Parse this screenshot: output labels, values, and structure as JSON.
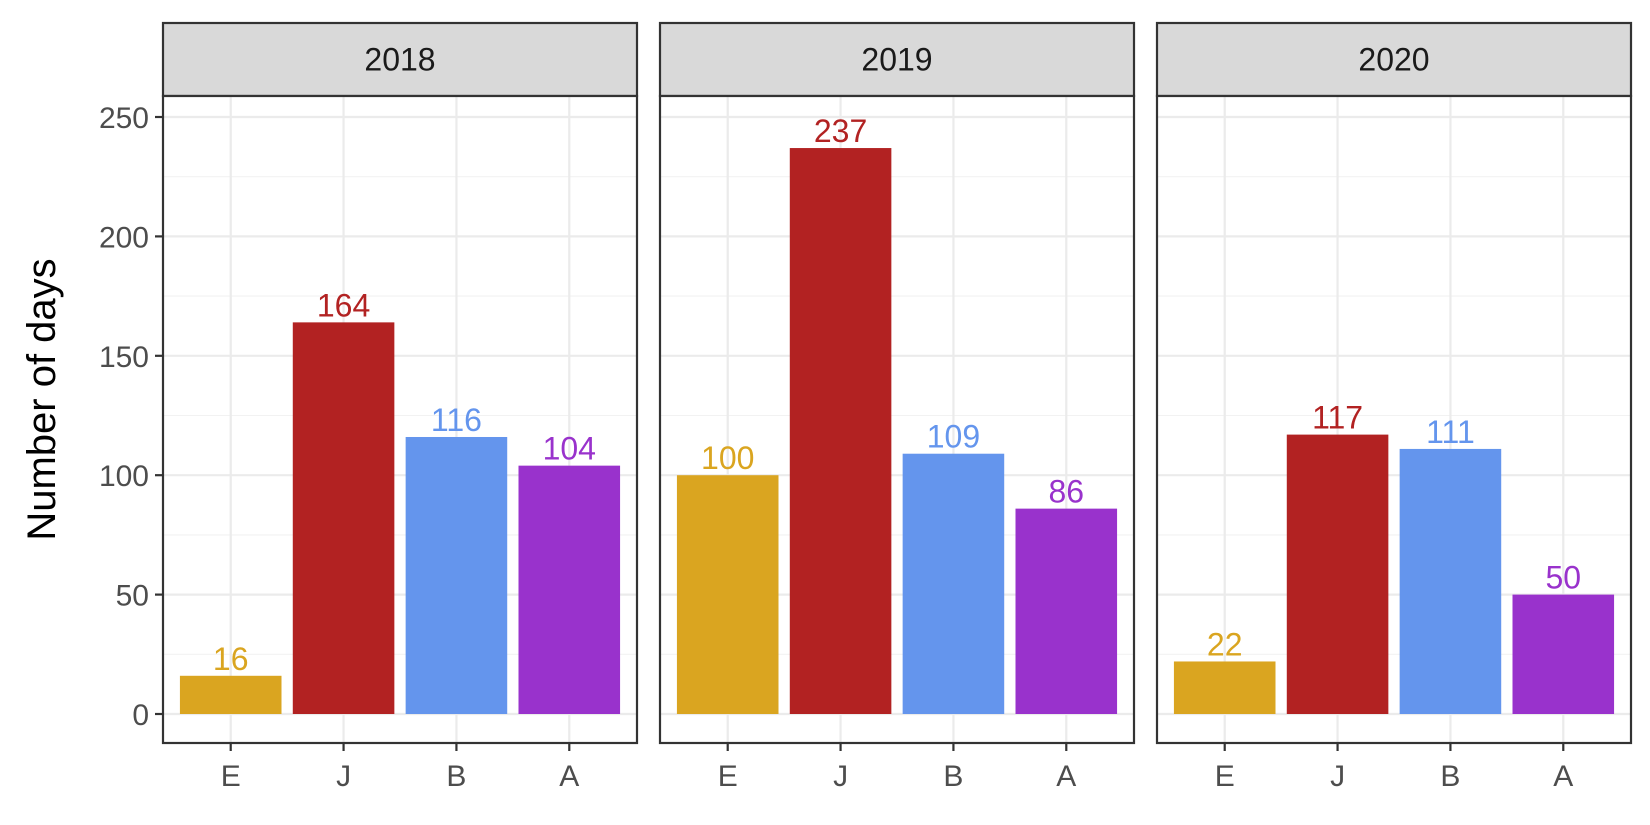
{
  "chart_data": {
    "type": "bar",
    "ylabel": "Number of days",
    "ylim": [
      0,
      250
    ],
    "yticks": [
      0,
      50,
      100,
      150,
      200,
      250
    ],
    "categories": [
      "E",
      "J",
      "B",
      "A"
    ],
    "colors": {
      "E": "#DAA520",
      "J": "#B22222",
      "B": "#6495ED",
      "A": "#9932CC"
    },
    "facets": [
      {
        "label": "2018",
        "values": [
          16,
          164,
          116,
          104
        ]
      },
      {
        "label": "2019",
        "values": [
          100,
          237,
          109,
          86
        ]
      },
      {
        "label": "2020",
        "values": [
          22,
          117,
          111,
          50
        ]
      }
    ],
    "grid": true,
    "legend": "none"
  }
}
